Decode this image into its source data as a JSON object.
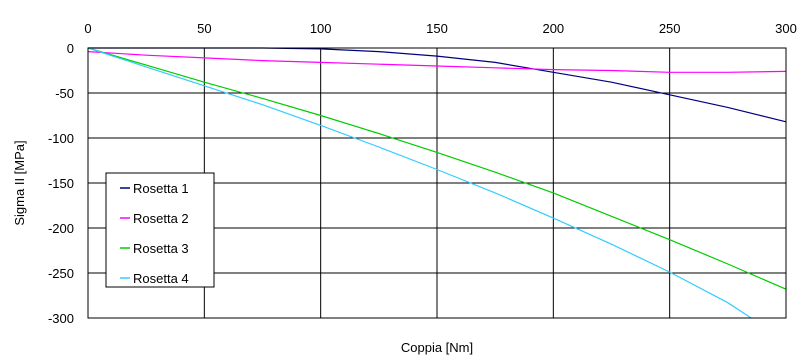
{
  "chart_data": {
    "type": "line",
    "title": "",
    "xlabel": "Coppia [Nm]",
    "ylabel": "Sigma II [MPa]",
    "xlim": [
      0,
      300
    ],
    "ylim": [
      -300,
      0
    ],
    "x_ticks": [
      0,
      50,
      100,
      150,
      200,
      250,
      300
    ],
    "y_ticks": [
      0,
      -50,
      -100,
      -150,
      -200,
      -250,
      -300
    ],
    "x_tick_labels": [
      "0",
      "50",
      "100",
      "150",
      "200",
      "250",
      "300"
    ],
    "y_tick_labels": [
      "0",
      "-50",
      "-100",
      "-150",
      "-200",
      "-250",
      "-300"
    ],
    "x_axis_position": "top",
    "grid": true,
    "legend_position": "bottom-left",
    "series": [
      {
        "name": "Rosetta 1",
        "color": "#000080",
        "x": [
          0,
          25,
          50,
          75,
          100,
          125,
          150,
          175,
          200,
          225,
          250,
          275,
          300
        ],
        "y": [
          0,
          0,
          0,
          0,
          -1,
          -4,
          -9,
          -16,
          -27,
          -38,
          -52,
          -66,
          -82
        ]
      },
      {
        "name": "Rosetta 2",
        "color": "#ff00ff",
        "x": [
          0,
          25,
          50,
          75,
          100,
          125,
          150,
          175,
          200,
          225,
          250,
          275,
          300
        ],
        "y": [
          -4,
          -8,
          -11,
          -14,
          -16,
          -18,
          -20,
          -22,
          -24,
          -25,
          -27,
          -27,
          -26
        ]
      },
      {
        "name": "Rosetta 3",
        "color": "#00cc00",
        "x": [
          0,
          25,
          50,
          75,
          100,
          125,
          150,
          175,
          200,
          225,
          250,
          275,
          300
        ],
        "y": [
          0,
          -19,
          -38,
          -56,
          -75,
          -95,
          -116,
          -138,
          -161,
          -187,
          -213,
          -240,
          -268
        ]
      },
      {
        "name": "Rosetta 4",
        "color": "#33ccff",
        "x": [
          0,
          25,
          50,
          75,
          100,
          125,
          150,
          175,
          200,
          225,
          250,
          275,
          285
        ],
        "y": [
          0,
          -21,
          -42,
          -63,
          -86,
          -110,
          -135,
          -161,
          -189,
          -218,
          -249,
          -283,
          -300
        ]
      }
    ]
  }
}
